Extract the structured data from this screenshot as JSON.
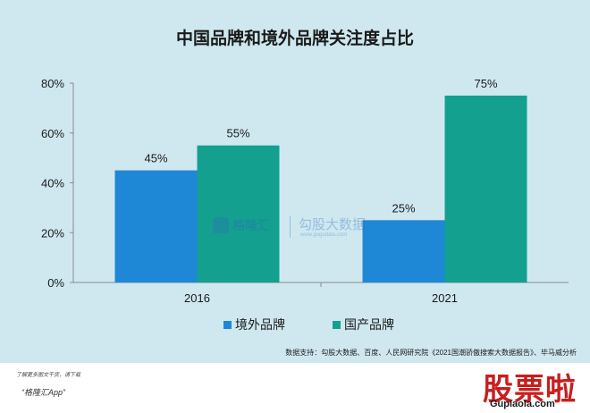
{
  "chart_data": {
    "type": "bar",
    "title": "中国品牌和境外品牌关注度占比",
    "categories": [
      "2016",
      "2021"
    ],
    "series": [
      {
        "name": "境外品牌",
        "values": [
          45,
          25
        ],
        "labels": [
          "45%",
          "25%"
        ],
        "color": "#1e88d6"
      },
      {
        "name": "国产品牌",
        "values": [
          55,
          75
        ],
        "labels": [
          "55%",
          "75%"
        ],
        "color": "#14a08f"
      }
    ],
    "ylim": [
      0,
      80
    ],
    "yticks": [
      0,
      20,
      40,
      60,
      80
    ],
    "ytick_labels": [
      "0%",
      "20%",
      "40%",
      "60%",
      "80%"
    ],
    "grid": false,
    "legend_position": "bottom",
    "source": "数据支持：勾股大数据、百度、人民网研究院《2021国潮骄傲搜索大数据报告》、毕马威分析"
  },
  "watermark": {
    "brand": "格隆汇",
    "secondary": "勾股大数据",
    "url": "www.gogudata.com"
  },
  "footer": {
    "note": "了解更多图文干货，请下载",
    "app": "“格隆汇App”"
  },
  "corner_logo": {
    "text": "股票啦",
    "url": "Gupiaola.com"
  }
}
